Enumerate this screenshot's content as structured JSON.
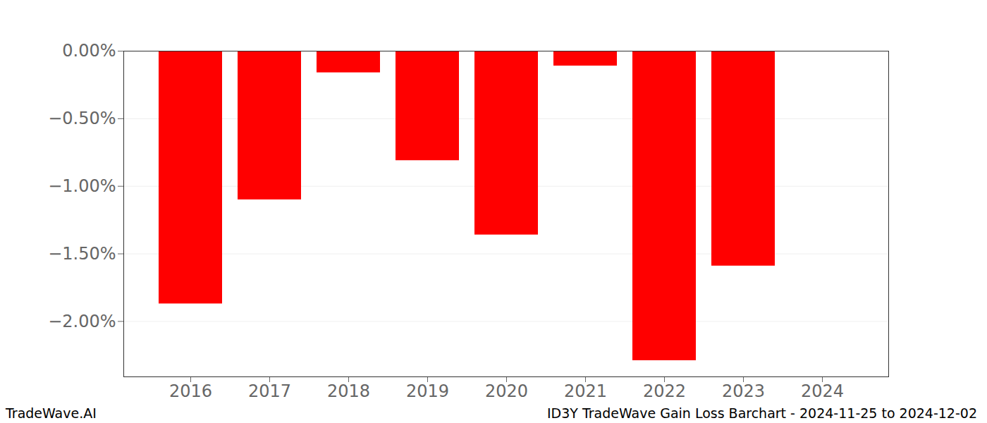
{
  "chart_data": {
    "type": "bar",
    "title": "ID3Y TradeWave Gain Loss Barchart - 2024-11-25 to 2024-12-02",
    "caption": "TradeWave.AI",
    "categories": [
      "2016",
      "2017",
      "2018",
      "2019",
      "2020",
      "2021",
      "2022",
      "2023",
      "2024"
    ],
    "values": [
      -1.87,
      -1.1,
      -0.16,
      -0.81,
      -1.36,
      -0.11,
      -2.29,
      -1.59,
      null
    ],
    "color": "#ff0000",
    "ylim": [
      -2.41,
      0
    ],
    "yticks": [
      {
        "value": 0,
        "label": "0.00%"
      },
      {
        "value": -0.5,
        "label": "−0.50%"
      },
      {
        "value": -1,
        "label": "−1.00%"
      },
      {
        "value": -1.5,
        "label": "−1.50%"
      },
      {
        "value": -2,
        "label": "−2.00%"
      }
    ],
    "grid": true
  }
}
